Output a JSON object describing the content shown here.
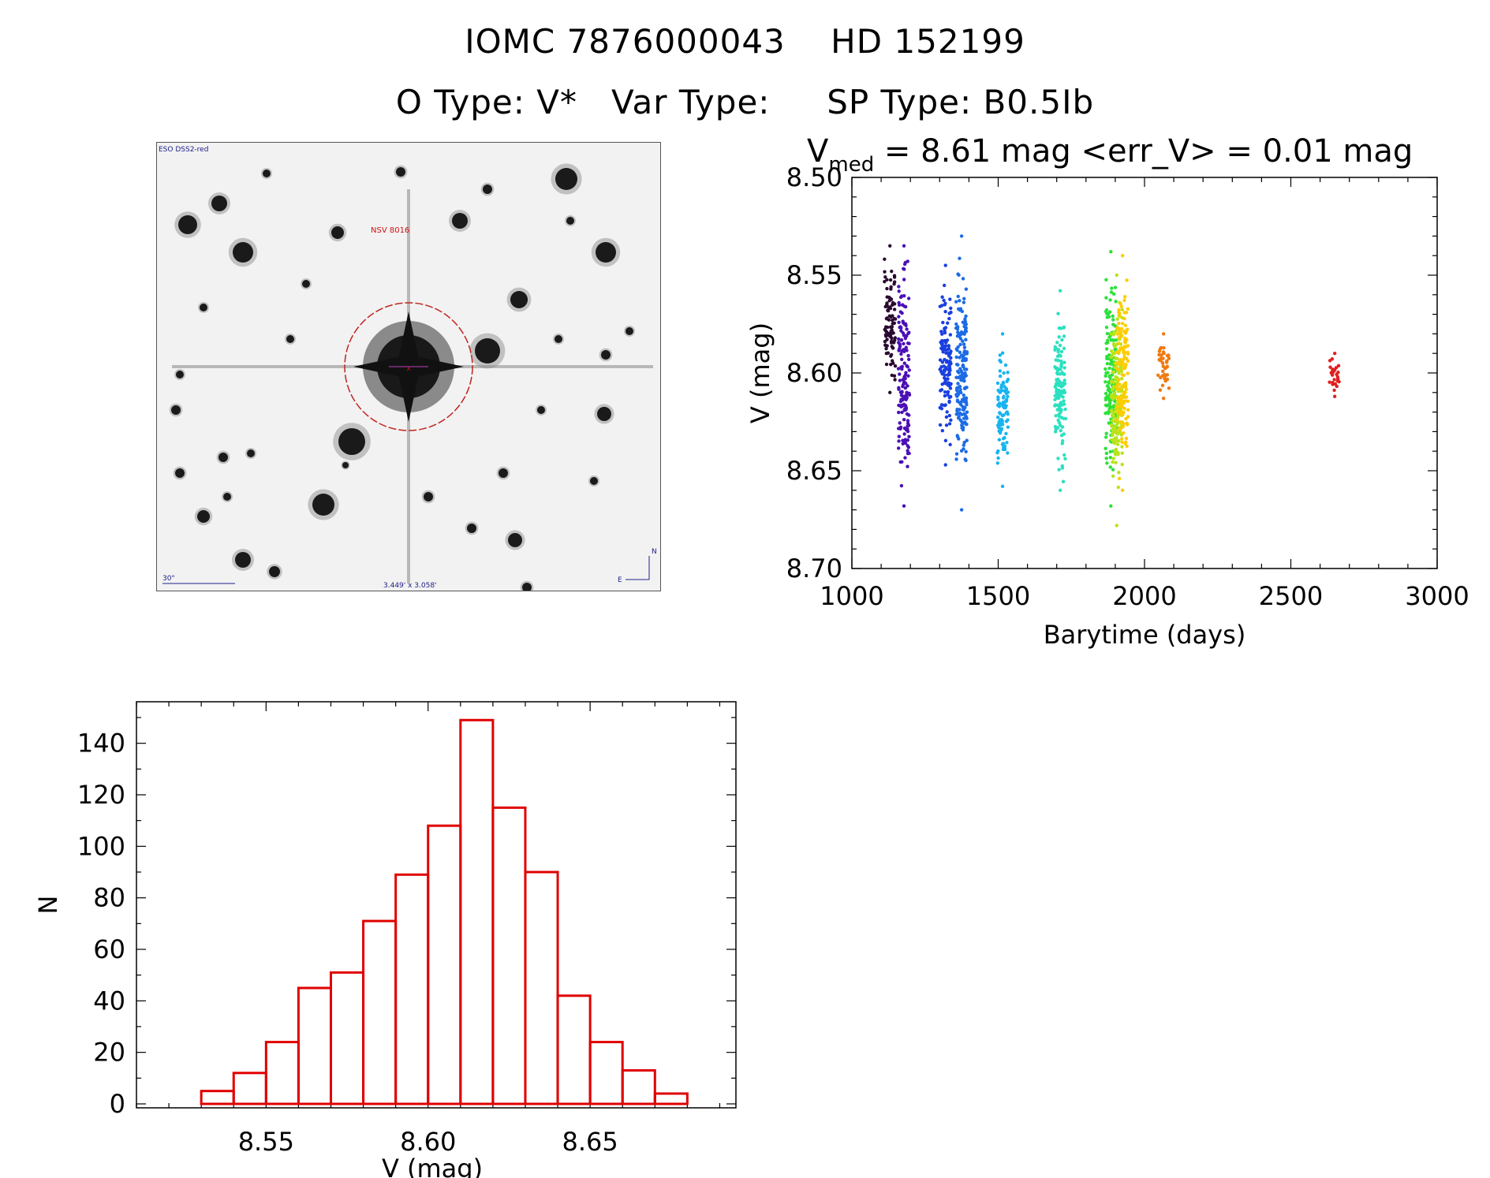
{
  "header": {
    "line1": "IOMC 7876000043    HD 152199",
    "line2": "O Type: V*   Var Type:     SP Type: B0.5Ib"
  },
  "finder_image": {
    "survey_label": "ESO DSS2-red",
    "object_label": "NSV 8016",
    "scale_label": "30\"",
    "fov_label": "3.449' x 3.058'",
    "north_label": "N",
    "east_label": "E"
  },
  "chart_data": [
    {
      "type": "scatter",
      "title_prefix": "V",
      "title_subscript": "med",
      "title_rest": " = 8.61 mag <err_V> = 0.01 mag",
      "xlabel": "Barytime (days)",
      "ylabel": "V (mag)",
      "xlim": [
        1000,
        3000
      ],
      "ylim": [
        8.7,
        8.5
      ],
      "x_ticks": [
        "1000",
        "1500",
        "2000",
        "2500",
        "3000"
      ],
      "y_ticks": [
        "8.50",
        "8.55",
        "8.60",
        "8.65",
        "8.70"
      ],
      "series": [
        {
          "name": "epoch-1130",
          "color": "#2a0a30",
          "x": 1130,
          "v_min": 8.535,
          "v_max": 8.61
        },
        {
          "name": "epoch-1175",
          "color": "#4b10b5",
          "x": 1178,
          "v_min": 8.535,
          "v_max": 8.668
        },
        {
          "name": "epoch-1320",
          "color": "#1a3fe0",
          "x": 1320,
          "v_min": 8.545,
          "v_max": 8.647
        },
        {
          "name": "epoch-1375",
          "color": "#1c6be6",
          "x": 1375,
          "v_min": 8.53,
          "v_max": 8.67
        },
        {
          "name": "epoch-1515",
          "color": "#18b4f0",
          "x": 1515,
          "v_min": 8.58,
          "v_max": 8.658
        },
        {
          "name": "epoch-1715",
          "color": "#2be0c0",
          "x": 1712,
          "v_min": 8.558,
          "v_max": 8.66
        },
        {
          "name": "epoch-1880",
          "color": "#2ee03a",
          "x": 1885,
          "v_min": 8.538,
          "v_max": 8.668
        },
        {
          "name": "epoch-1905",
          "color": "#b8e418",
          "x": 1905,
          "v_min": 8.55,
          "v_max": 8.678
        },
        {
          "name": "epoch-1925",
          "color": "#ffcc00",
          "x": 1925,
          "v_min": 8.54,
          "v_max": 8.66
        },
        {
          "name": "epoch-2065",
          "color": "#f07a10",
          "x": 2065,
          "v_min": 8.58,
          "v_max": 8.613
        },
        {
          "name": "epoch-2650",
          "color": "#e02020",
          "x": 2650,
          "v_min": 8.59,
          "v_max": 8.612
        }
      ]
    },
    {
      "type": "bar",
      "style": "histogram-step",
      "xlabel": "V (mag)",
      "ylabel": "N",
      "xlim": [
        8.51,
        8.695
      ],
      "ylim": [
        0,
        150
      ],
      "x_ticks": [
        "8.55",
        "8.60",
        "8.65"
      ],
      "y_ticks": [
        "0",
        "20",
        "40",
        "60",
        "80",
        "100",
        "120",
        "140"
      ],
      "bin_width": 0.01,
      "bin_starts": [
        8.53,
        8.54,
        8.55,
        8.56,
        8.57,
        8.58,
        8.59,
        8.6,
        8.61,
        8.62,
        8.63,
        8.64,
        8.65,
        8.66,
        8.67
      ],
      "values": [
        5,
        12,
        24,
        45,
        51,
        71,
        89,
        108,
        149,
        115,
        90,
        42,
        24,
        13,
        4
      ],
      "color": "#e00000"
    }
  ]
}
